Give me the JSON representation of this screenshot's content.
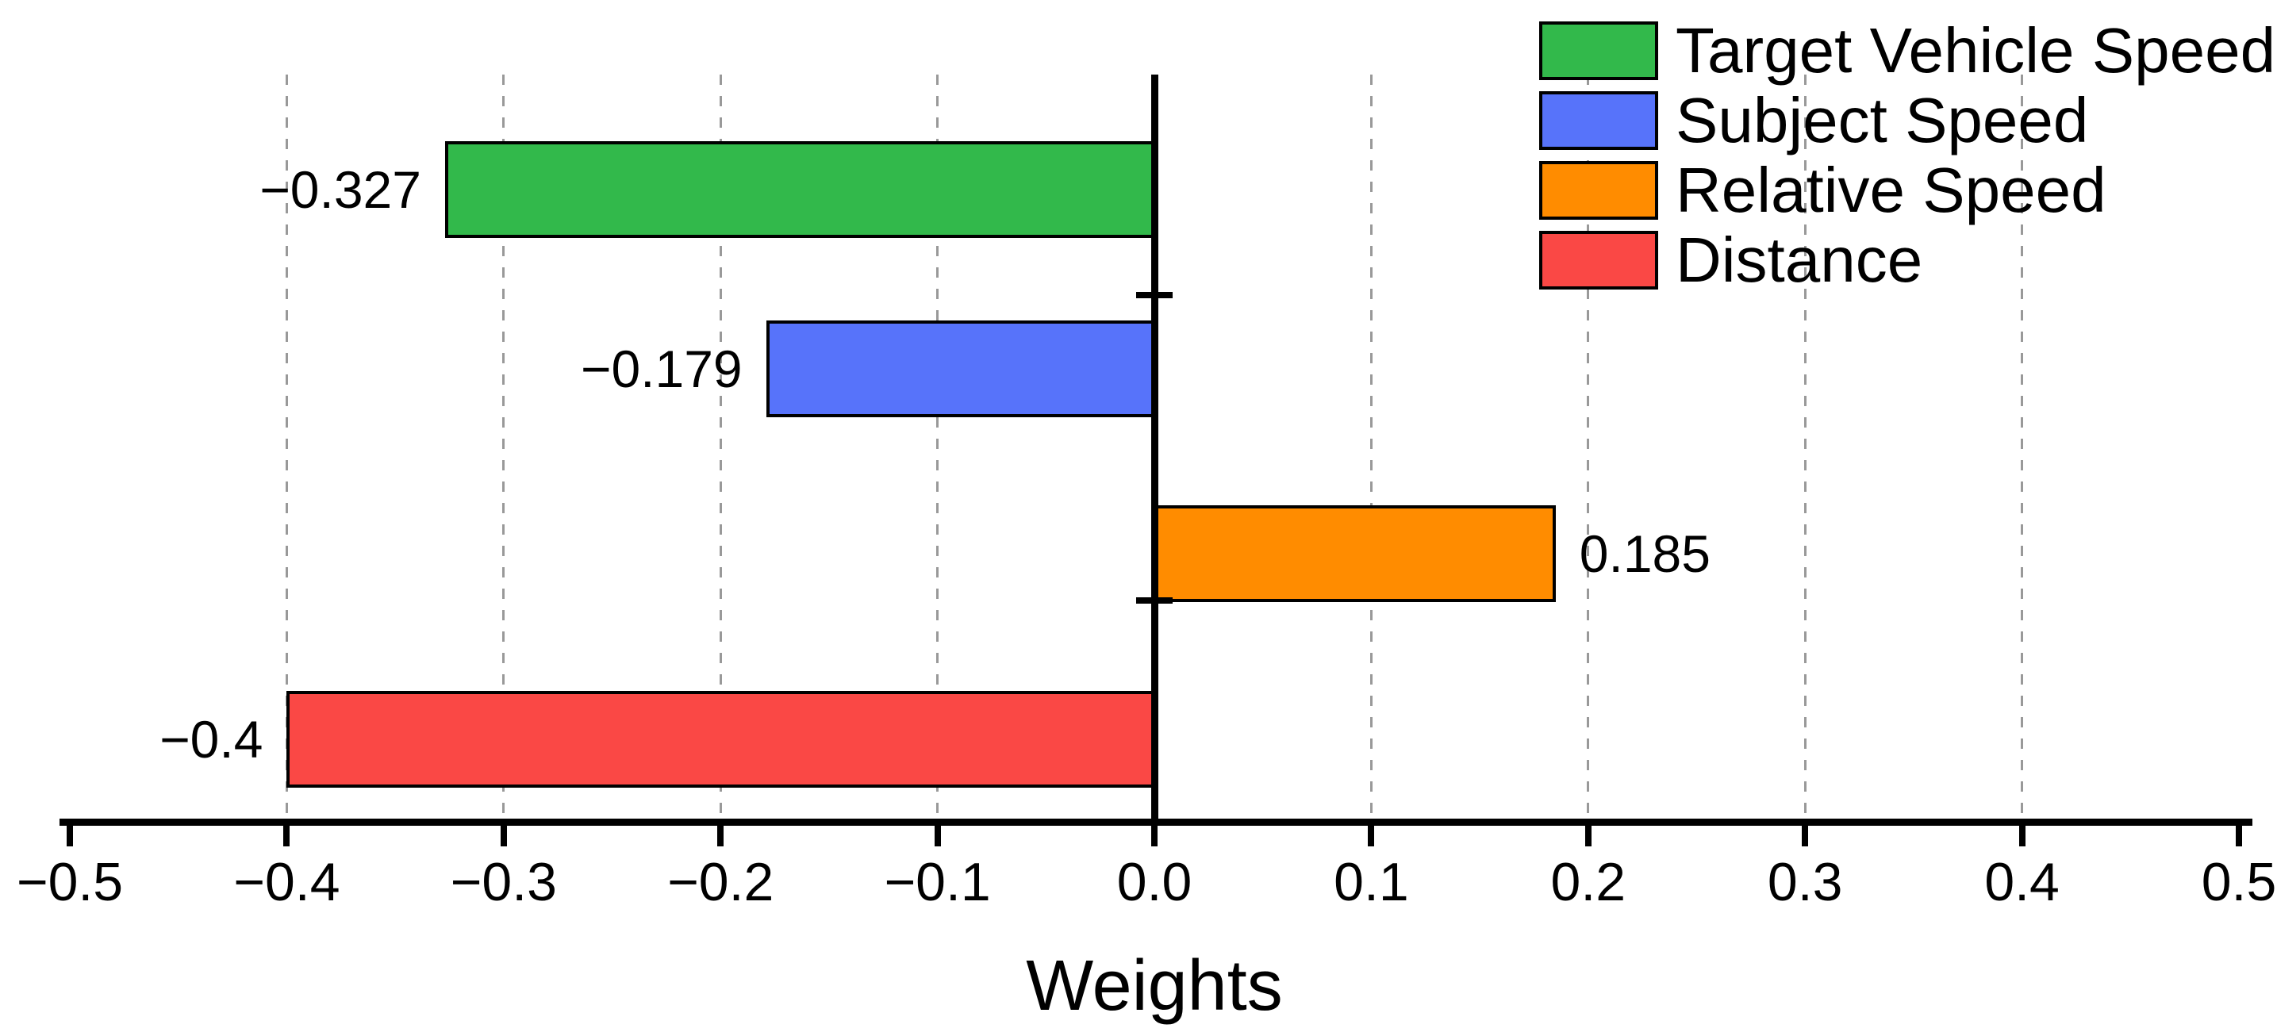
{
  "chart_data": {
    "type": "bar",
    "orientation": "horizontal",
    "xlabel": "Weights",
    "categories": [
      "Target Vehicle Speed",
      "Subject Speed",
      "Relative Speed",
      "Distance"
    ],
    "values": [
      -0.327,
      -0.179,
      0.185,
      -0.4
    ],
    "value_labels": [
      "−0.327",
      "−0.179",
      "0.185",
      "−0.4"
    ],
    "colors": [
      "#32b94b",
      "#5773fa",
      "#ff8c00",
      "#fa4845"
    ],
    "xlim": [
      -0.5,
      0.5
    ],
    "xtick_values": [
      -0.5,
      -0.4,
      -0.3,
      -0.2,
      -0.1,
      0.0,
      0.1,
      0.2,
      0.3,
      0.4,
      0.5
    ],
    "xtick_labels": [
      "−0.5",
      "−0.4",
      "−0.3",
      "−0.2",
      "−0.1",
      "0.0",
      "0.1",
      "0.2",
      "0.3",
      "0.4",
      "0.5"
    ],
    "grid": "vertical-dashed",
    "gridline_color": "#999999",
    "legend_position": "top-right",
    "legend": [
      {
        "label": "Target Vehicle Speed",
        "color": "#32b94b"
      },
      {
        "label": "Subject Speed",
        "color": "#5773fa"
      },
      {
        "label": "Relative Speed",
        "color": "#ff8c00"
      },
      {
        "label": "Distance",
        "color": "#fa4845"
      }
    ]
  }
}
